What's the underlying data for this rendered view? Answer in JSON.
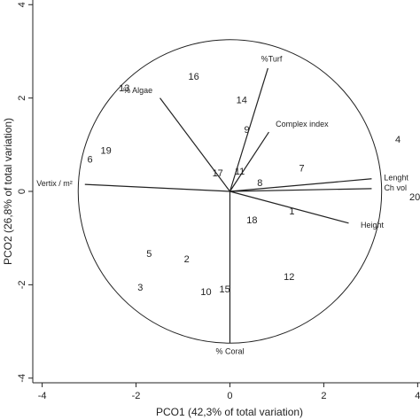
{
  "chart_data": {
    "type": "scatter",
    "x_label": "PCO1 (42,3% of total variation)",
    "y_label": "PCO2 (26,8% of total variation)",
    "xlim": [
      -4.2,
      4.05
    ],
    "ylim": [
      -4.1,
      4.1
    ],
    "xticks": [
      -4,
      -2,
      0,
      2,
      4
    ],
    "yticks": [
      -4,
      -2,
      0,
      2,
      4
    ],
    "points": {
      "labels": [
        "16",
        "13",
        "14",
        "9",
        "19",
        "6",
        "17",
        "11",
        "7",
        "8",
        "4",
        "20",
        "18",
        "1",
        "5",
        "2",
        "3",
        "10",
        "15",
        "12"
      ],
      "x": [
        -0.77,
        -2.25,
        0.25,
        0.36,
        -2.64,
        -2.98,
        -0.26,
        0.21,
        1.53,
        0.64,
        3.58,
        3.94,
        0.47,
        1.32,
        -1.72,
        -0.92,
        -1.91,
        -0.51,
        -0.11,
        1.26
      ],
      "y": [
        2.45,
        2.2,
        1.94,
        1.31,
        0.86,
        0.67,
        0.38,
        0.42,
        0.48,
        0.17,
        1.1,
        -0.13,
        -0.63,
        -0.44,
        -1.35,
        -1.46,
        -2.07,
        -2.17,
        -2.11,
        -1.84
      ]
    },
    "vectors": [
      {
        "name": "%Turf",
        "x": 0.81,
        "y": 2.64
      },
      {
        "name": "% Algae",
        "x": -1.49,
        "y": 2.0
      },
      {
        "name": "Complex index",
        "x": 0.83,
        "y": 1.27
      },
      {
        "name": "Vertix / m²",
        "x": -3.09,
        "y": 0.15
      },
      {
        "name": "Lenght",
        "x": 3.02,
        "y": 0.27
      },
      {
        "name": "Ch vol",
        "x": 3.02,
        "y": 0.06
      },
      {
        "name": "Height",
        "x": 2.53,
        "y": -0.68
      },
      {
        "name": "% Coral",
        "x": 0,
        "y": -3.25
      }
    ]
  }
}
